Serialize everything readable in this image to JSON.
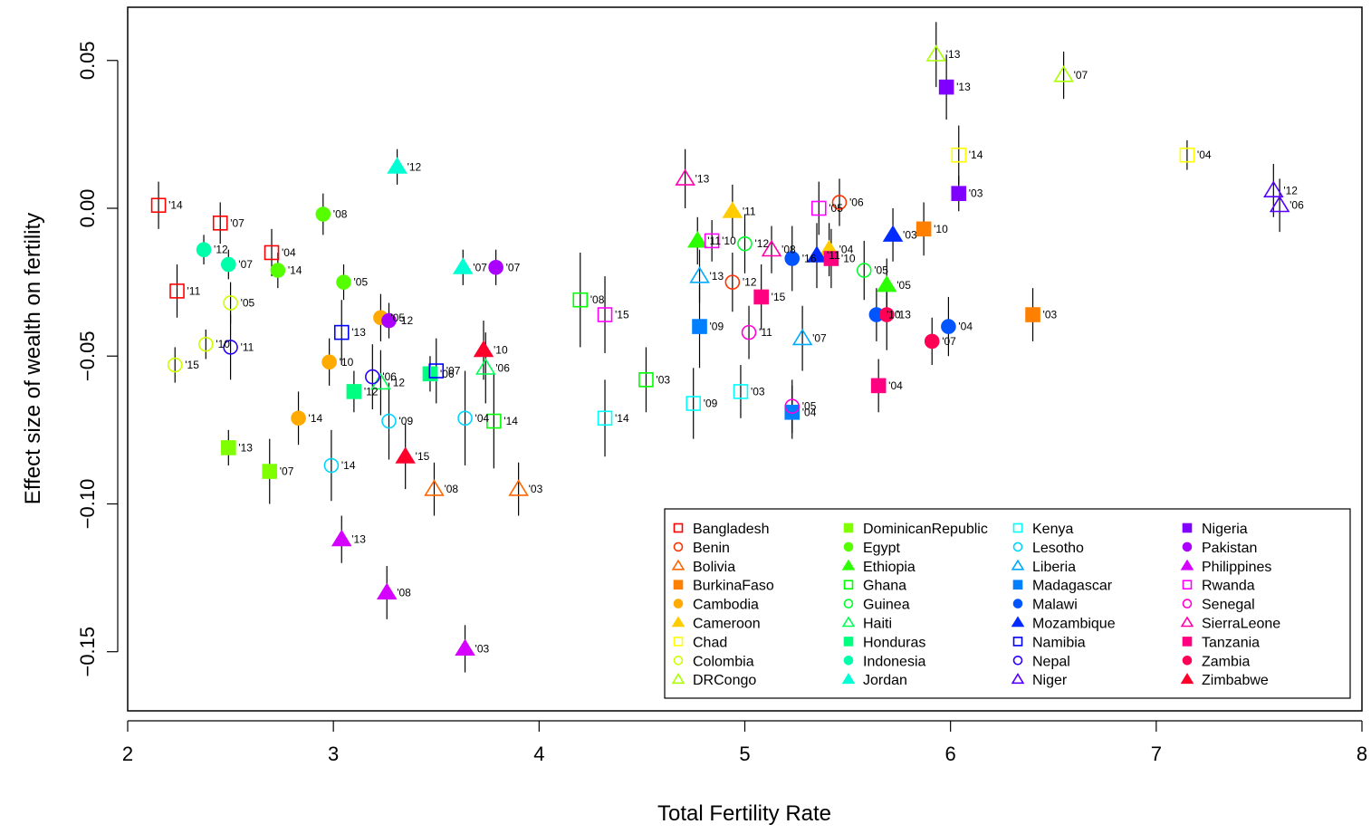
{
  "chart_data": {
    "type": "scatter",
    "title": "",
    "xlabel": "Total Fertility Rate",
    "ylabel": "Effect size of wealth on fertility",
    "xlim": [
      2,
      8
    ],
    "ylim": [
      -0.17,
      0.068
    ],
    "xticks": [
      2,
      3,
      4,
      5,
      6,
      7,
      8
    ],
    "xtick_labels": [
      "2",
      "3",
      "4",
      "5",
      "6",
      "7",
      "8"
    ],
    "yticks": [
      -0.15,
      -0.1,
      -0.05,
      0.0,
      0.05
    ],
    "ytick_labels": [
      "−0.15",
      "−0.10",
      "−0.05",
      "0.00",
      "0.05"
    ],
    "grid": false,
    "legend_position": "bottom-right",
    "error_bars": true,
    "series": [
      {
        "name": "Bangladesh",
        "color": "#FF0000",
        "marker": "square-open",
        "points": [
          {
            "x": 2.15,
            "y": 0.001,
            "err": 0.008,
            "label": "'14"
          },
          {
            "x": 2.45,
            "y": -0.005,
            "err": 0.007,
            "label": "'07"
          },
          {
            "x": 2.7,
            "y": -0.015,
            "err": 0.008,
            "label": "'04"
          },
          {
            "x": 2.24,
            "y": -0.028,
            "err": 0.009,
            "label": "'11"
          }
        ]
      },
      {
        "name": "Benin",
        "color": "#FF3300",
        "marker": "circle-open",
        "points": [
          {
            "x": 5.46,
            "y": 0.002,
            "err": 0.008,
            "label": "'06"
          },
          {
            "x": 4.94,
            "y": -0.025,
            "err": 0.01,
            "label": "'12"
          }
        ]
      },
      {
        "name": "Bolivia",
        "color": "#FF6600",
        "marker": "triangle-open",
        "points": [
          {
            "x": 3.49,
            "y": -0.095,
            "err": 0.009,
            "label": "'08"
          },
          {
            "x": 3.9,
            "y": -0.095,
            "err": 0.009,
            "label": "'03"
          }
        ]
      },
      {
        "name": "BurkinaFaso",
        "color": "#FF8000",
        "marker": "square-filled",
        "points": [
          {
            "x": 5.87,
            "y": -0.007,
            "err": 0.009,
            "label": "'10"
          },
          {
            "x": 6.4,
            "y": -0.036,
            "err": 0.009,
            "label": "'03"
          }
        ]
      },
      {
        "name": "Cambodia",
        "color": "#FFAA00",
        "marker": "circle-filled",
        "points": [
          {
            "x": 3.23,
            "y": -0.037,
            "err": 0.008,
            "label": "'05"
          },
          {
            "x": 2.98,
            "y": -0.052,
            "err": 0.008,
            "label": "'10"
          },
          {
            "x": 2.83,
            "y": -0.071,
            "err": 0.009,
            "label": "'14"
          }
        ]
      },
      {
        "name": "Cameroon",
        "color": "#FFCC00",
        "marker": "triangle-filled",
        "points": [
          {
            "x": 4.94,
            "y": -0.001,
            "err": 0.009,
            "label": "'11"
          },
          {
            "x": 5.41,
            "y": -0.014,
            "err": 0.009,
            "label": "'04"
          }
        ]
      },
      {
        "name": "Chad",
        "color": "#FFFF00",
        "marker": "square-open",
        "points": [
          {
            "x": 6.04,
            "y": 0.018,
            "err": 0.01,
            "label": "'14"
          },
          {
            "x": 7.15,
            "y": 0.018,
            "err": 0.005,
            "label": "'04"
          }
        ]
      },
      {
        "name": "Colombia",
        "color": "#CCFF00",
        "marker": "circle-open",
        "points": [
          {
            "x": 2.5,
            "y": -0.032,
            "err": 0.007,
            "label": "'05"
          },
          {
            "x": 2.38,
            "y": -0.046,
            "err": 0.005,
            "label": "'10"
          },
          {
            "x": 2.23,
            "y": -0.053,
            "err": 0.006,
            "label": "'15"
          }
        ]
      },
      {
        "name": "DRCongo",
        "color": "#AAFF00",
        "marker": "triangle-open",
        "points": [
          {
            "x": 5.93,
            "y": 0.052,
            "err": 0.011,
            "label": "'13"
          },
          {
            "x": 6.55,
            "y": 0.045,
            "err": 0.008,
            "label": "'07"
          }
        ]
      },
      {
        "name": "DominicanRepublic",
        "color": "#80FF00",
        "marker": "square-filled",
        "points": [
          {
            "x": 2.49,
            "y": -0.081,
            "err": 0.006,
            "label": "'13"
          },
          {
            "x": 2.69,
            "y": -0.089,
            "err": 0.011,
            "label": "'07"
          }
        ]
      },
      {
        "name": "Egypt",
        "color": "#55FF00",
        "marker": "circle-filled",
        "points": [
          {
            "x": 2.95,
            "y": -0.002,
            "err": 0.007,
            "label": "'08"
          },
          {
            "x": 2.73,
            "y": -0.021,
            "err": 0.006,
            "label": "'14"
          },
          {
            "x": 3.05,
            "y": -0.025,
            "err": 0.006,
            "label": "'05"
          }
        ]
      },
      {
        "name": "Ethiopia",
        "color": "#2BFF00",
        "marker": "triangle-filled",
        "points": [
          {
            "x": 4.77,
            "y": -0.011,
            "err": 0.008,
            "label": "'11"
          },
          {
            "x": 5.69,
            "y": -0.026,
            "err": 0.009,
            "label": "'05"
          }
        ]
      },
      {
        "name": "Ghana",
        "color": "#00FF00",
        "marker": "square-open",
        "points": [
          {
            "x": 4.2,
            "y": -0.031,
            "err": 0.016,
            "label": "'08"
          },
          {
            "x": 4.52,
            "y": -0.058,
            "err": 0.011,
            "label": "'03"
          },
          {
            "x": 3.78,
            "y": -0.072,
            "err": 0.016,
            "label": "'14"
          }
        ]
      },
      {
        "name": "Guinea",
        "color": "#00FF2B",
        "marker": "circle-open",
        "points": [
          {
            "x": 5.0,
            "y": -0.012,
            "err": 0.01,
            "label": "'12"
          },
          {
            "x": 5.58,
            "y": -0.021,
            "err": 0.01,
            "label": "'05"
          }
        ]
      },
      {
        "name": "Haiti",
        "color": "#00FF55",
        "marker": "triangle-open",
        "points": [
          {
            "x": 3.74,
            "y": -0.054,
            "err": 0.012,
            "label": "'06"
          },
          {
            "x": 3.23,
            "y": -0.059,
            "err": 0.011,
            "label": "'12"
          }
        ]
      },
      {
        "name": "Honduras",
        "color": "#00FF80",
        "marker": "square-filled",
        "points": [
          {
            "x": 3.1,
            "y": -0.062,
            "err": 0.007,
            "label": "'12"
          },
          {
            "x": 3.47,
            "y": -0.056,
            "err": 0.006,
            "label": "'06"
          }
        ]
      },
      {
        "name": "Indonesia",
        "color": "#00FFAA",
        "marker": "circle-filled",
        "points": [
          {
            "x": 2.37,
            "y": -0.014,
            "err": 0.005,
            "label": "'12"
          },
          {
            "x": 2.49,
            "y": -0.019,
            "err": 0.005,
            "label": "'07"
          }
        ]
      },
      {
        "name": "Jordan",
        "color": "#00FFD5",
        "marker": "triangle-filled",
        "points": [
          {
            "x": 3.31,
            "y": 0.014,
            "err": 0.006,
            "label": "'12"
          },
          {
            "x": 3.63,
            "y": -0.02,
            "err": 0.006,
            "label": "'07"
          }
        ]
      },
      {
        "name": "Kenya",
        "color": "#00FFFF",
        "marker": "square-open",
        "points": [
          {
            "x": 4.32,
            "y": -0.071,
            "err": 0.013,
            "label": "'14"
          },
          {
            "x": 4.98,
            "y": -0.062,
            "err": 0.009,
            "label": "'03"
          },
          {
            "x": 4.75,
            "y": -0.066,
            "err": 0.012,
            "label": "'09"
          }
        ]
      },
      {
        "name": "Lesotho",
        "color": "#00D5FF",
        "marker": "circle-open",
        "points": [
          {
            "x": 3.27,
            "y": -0.072,
            "err": 0.013,
            "label": "'09"
          },
          {
            "x": 2.99,
            "y": -0.087,
            "err": 0.012,
            "label": "'14"
          },
          {
            "x": 3.64,
            "y": -0.071,
            "err": 0.016,
            "label": "'04"
          }
        ]
      },
      {
        "name": "Liberia",
        "color": "#00AAFF",
        "marker": "triangle-open",
        "points": [
          {
            "x": 4.78,
            "y": -0.023,
            "err": 0.009,
            "label": "'13"
          },
          {
            "x": 5.28,
            "y": -0.044,
            "err": 0.011,
            "label": "'07"
          }
        ]
      },
      {
        "name": "Madagascar",
        "color": "#0080FF",
        "marker": "square-filled",
        "points": [
          {
            "x": 4.78,
            "y": -0.04,
            "err": 0.014,
            "label": "'09"
          },
          {
            "x": 5.23,
            "y": -0.069,
            "err": 0.009,
            "label": "'04"
          }
        ]
      },
      {
        "name": "Malawi",
        "color": "#0055FF",
        "marker": "circle-filled",
        "points": [
          {
            "x": 5.23,
            "y": -0.017,
            "err": 0.011,
            "label": "'16"
          },
          {
            "x": 5.64,
            "y": -0.036,
            "err": 0.009,
            "label": "'10"
          },
          {
            "x": 5.99,
            "y": -0.04,
            "err": 0.01,
            "label": "'04"
          }
        ]
      },
      {
        "name": "Mozambique",
        "color": "#002BFF",
        "marker": "triangle-filled",
        "points": [
          {
            "x": 5.72,
            "y": -0.009,
            "err": 0.009,
            "label": "'03"
          },
          {
            "x": 5.35,
            "y": -0.016,
            "err": 0.011,
            "label": "'11"
          }
        ]
      },
      {
        "name": "Namibia",
        "color": "#0000FF",
        "marker": "square-open",
        "points": [
          {
            "x": 3.04,
            "y": -0.042,
            "err": 0.011,
            "label": "'13"
          },
          {
            "x": 3.5,
            "y": -0.055,
            "err": 0.011,
            "label": "'07"
          }
        ]
      },
      {
        "name": "Nepal",
        "color": "#2B00FF",
        "marker": "circle-open",
        "points": [
          {
            "x": 2.5,
            "y": -0.047,
            "err": 0.011,
            "label": "'11"
          },
          {
            "x": 3.19,
            "y": -0.057,
            "err": 0.011,
            "label": "'06"
          }
        ]
      },
      {
        "name": "Niger",
        "color": "#5500FF",
        "marker": "triangle-open",
        "points": [
          {
            "x": 7.57,
            "y": 0.006,
            "err": 0.009,
            "label": "'12"
          },
          {
            "x": 7.6,
            "y": 0.001,
            "err": 0.009,
            "label": "'06"
          }
        ]
      },
      {
        "name": "Nigeria",
        "color": "#8000FF",
        "marker": "square-filled",
        "points": [
          {
            "x": 5.98,
            "y": 0.041,
            "err": 0.011,
            "label": "'13"
          },
          {
            "x": 6.04,
            "y": 0.005,
            "err": 0.006,
            "label": "'03"
          }
        ]
      },
      {
        "name": "Pakistan",
        "color": "#AA00FF",
        "marker": "circle-filled",
        "points": [
          {
            "x": 3.79,
            "y": -0.02,
            "err": 0.006,
            "label": "'07"
          },
          {
            "x": 3.27,
            "y": -0.038,
            "err": 0.006,
            "label": "'12"
          }
        ]
      },
      {
        "name": "Philippines",
        "color": "#D500FF",
        "marker": "triangle-filled",
        "points": [
          {
            "x": 3.04,
            "y": -0.112,
            "err": 0.008,
            "label": "'13"
          },
          {
            "x": 3.26,
            "y": -0.13,
            "err": 0.009,
            "label": "'08"
          },
          {
            "x": 3.64,
            "y": -0.149,
            "err": 0.008,
            "label": "'03"
          }
        ]
      },
      {
        "name": "Rwanda",
        "color": "#FF00FF",
        "marker": "square-open",
        "points": [
          {
            "x": 5.36,
            "y": 0.0,
            "err": 0.009,
            "label": "'05"
          },
          {
            "x": 4.84,
            "y": -0.011,
            "err": 0.007,
            "label": "'10"
          },
          {
            "x": 4.32,
            "y": -0.036,
            "err": 0.013,
            "label": "'15"
          }
        ]
      },
      {
        "name": "Senegal",
        "color": "#FF00D5",
        "marker": "circle-open",
        "points": [
          {
            "x": 5.02,
            "y": -0.042,
            "err": 0.009,
            "label": "'11"
          },
          {
            "x": 5.23,
            "y": -0.067,
            "err": 0.009,
            "label": "'05"
          }
        ]
      },
      {
        "name": "SierraLeone",
        "color": "#FF00AA",
        "marker": "triangle-open",
        "points": [
          {
            "x": 4.71,
            "y": 0.01,
            "err": 0.01,
            "label": "'13"
          },
          {
            "x": 5.13,
            "y": -0.014,
            "err": 0.008,
            "label": "'08"
          }
        ]
      },
      {
        "name": "Tanzania",
        "color": "#FF0080",
        "marker": "square-filled",
        "points": [
          {
            "x": 5.42,
            "y": -0.017,
            "err": 0.01,
            "label": "'10"
          },
          {
            "x": 5.08,
            "y": -0.03,
            "err": 0.011,
            "label": "'15"
          },
          {
            "x": 5.65,
            "y": -0.06,
            "err": 0.009,
            "label": "'04"
          }
        ]
      },
      {
        "name": "Zambia",
        "color": "#FF0055",
        "marker": "circle-filled",
        "points": [
          {
            "x": 5.69,
            "y": -0.036,
            "err": 0.012,
            "label": "'13"
          },
          {
            "x": 5.91,
            "y": -0.045,
            "err": 0.008,
            "label": "'07"
          }
        ]
      },
      {
        "name": "Zimbabwe",
        "color": "#FF002B",
        "marker": "triangle-filled",
        "points": [
          {
            "x": 3.73,
            "y": -0.048,
            "err": 0.01,
            "label": "'10"
          },
          {
            "x": 3.35,
            "y": -0.084,
            "err": 0.011,
            "label": "'15"
          }
        ]
      }
    ]
  }
}
